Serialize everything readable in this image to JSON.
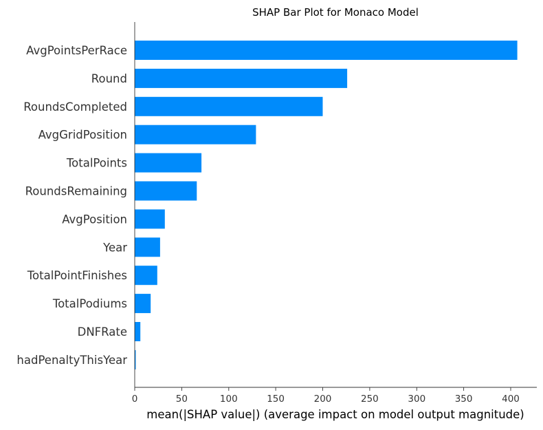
{
  "chart_data": {
    "type": "bar",
    "orientation": "horizontal",
    "title": "SHAP Bar Plot for Monaco Model",
    "xlabel": "mean(|SHAP value|) (average impact on model output magnitude)",
    "ylabel": "",
    "categories": [
      "AvgPointsPerRace",
      "Round",
      "RoundsCompleted",
      "AvgGridPosition",
      "TotalPoints",
      "RoundsRemaining",
      "AvgPosition",
      "Year",
      "TotalPointFinishes",
      "TotalPodiums",
      "DNFRate",
      "hadPenaltyThisYear"
    ],
    "values": [
      407,
      226,
      200,
      129,
      71,
      66,
      32,
      27,
      24,
      17,
      6,
      1
    ],
    "xlim": [
      0,
      430
    ],
    "xticks": [
      0,
      50,
      100,
      150,
      200,
      250,
      300,
      350,
      400
    ],
    "grid": false,
    "colors": {
      "bar": "#008bfb",
      "axis": "#333333"
    }
  }
}
